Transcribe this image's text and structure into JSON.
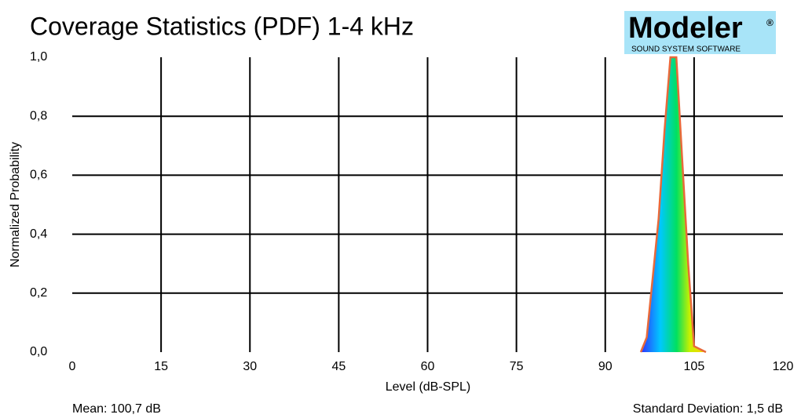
{
  "chart_data": {
    "type": "area",
    "title": "Coverage Statistics (PDF) 1-4 kHz",
    "xlabel": "Level (dB-SPL)",
    "ylabel": "Normalized Probability",
    "annotations": [
      "Mean: 100,7 dB",
      "Standard Deviation: 1,5 dB"
    ],
    "logo": {
      "name": "Modeler",
      "mark": "®",
      "tagline": "SOUND SYSTEM SOFTWARE"
    },
    "x": [
      96,
      97,
      98,
      99,
      100,
      101,
      102,
      103,
      104,
      105,
      106,
      107
    ],
    "values": [
      0,
      0.05,
      0.25,
      0.45,
      0.75,
      1.0,
      1.0,
      0.65,
      0.3,
      0.02,
      0.01,
      0
    ],
    "color": "#e8693a",
    "xlim": [
      0,
      120
    ],
    "xticks": [
      0,
      15,
      30,
      45,
      60,
      75,
      90,
      105,
      120
    ],
    "ylim": [
      0,
      1
    ],
    "yticks": [
      {
        "value": 0,
        "label": "0,0"
      },
      {
        "value": 0.2,
        "label": "0,2"
      },
      {
        "value": 0.4,
        "label": "0,4"
      },
      {
        "value": 0.6,
        "label": "0,6"
      },
      {
        "value": 0.8,
        "label": "0,8"
      },
      {
        "value": 1,
        "label": "1,0"
      }
    ],
    "grid": true
  }
}
